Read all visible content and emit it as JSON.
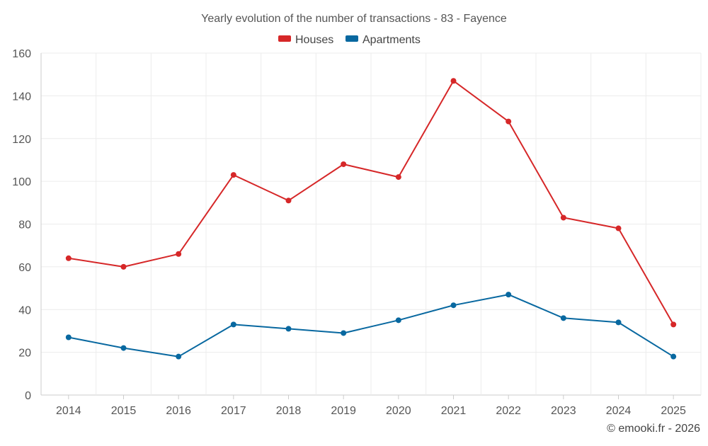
{
  "chart_data": {
    "type": "line",
    "title": "Yearly evolution of the number of transactions - 83 - Fayence",
    "xlabel": "",
    "ylabel": "",
    "categories": [
      "2014",
      "2015",
      "2016",
      "2017",
      "2018",
      "2019",
      "2020",
      "2021",
      "2022",
      "2023",
      "2024",
      "2025"
    ],
    "yticks": [
      0,
      20,
      40,
      60,
      80,
      100,
      120,
      140,
      160
    ],
    "ylim": [
      0,
      160
    ],
    "grid": true,
    "legend_position": "top-center",
    "series": [
      {
        "name": "Houses",
        "color": "#d62728",
        "values": [
          64,
          60,
          66,
          103,
          91,
          108,
          102,
          147,
          128,
          83,
          78,
          33
        ]
      },
      {
        "name": "Apartments",
        "color": "#0868a0",
        "values": [
          27,
          22,
          18,
          33,
          31,
          29,
          35,
          42,
          47,
          36,
          34,
          18
        ]
      }
    ]
  },
  "credit": "© emooki.fr - 2026"
}
